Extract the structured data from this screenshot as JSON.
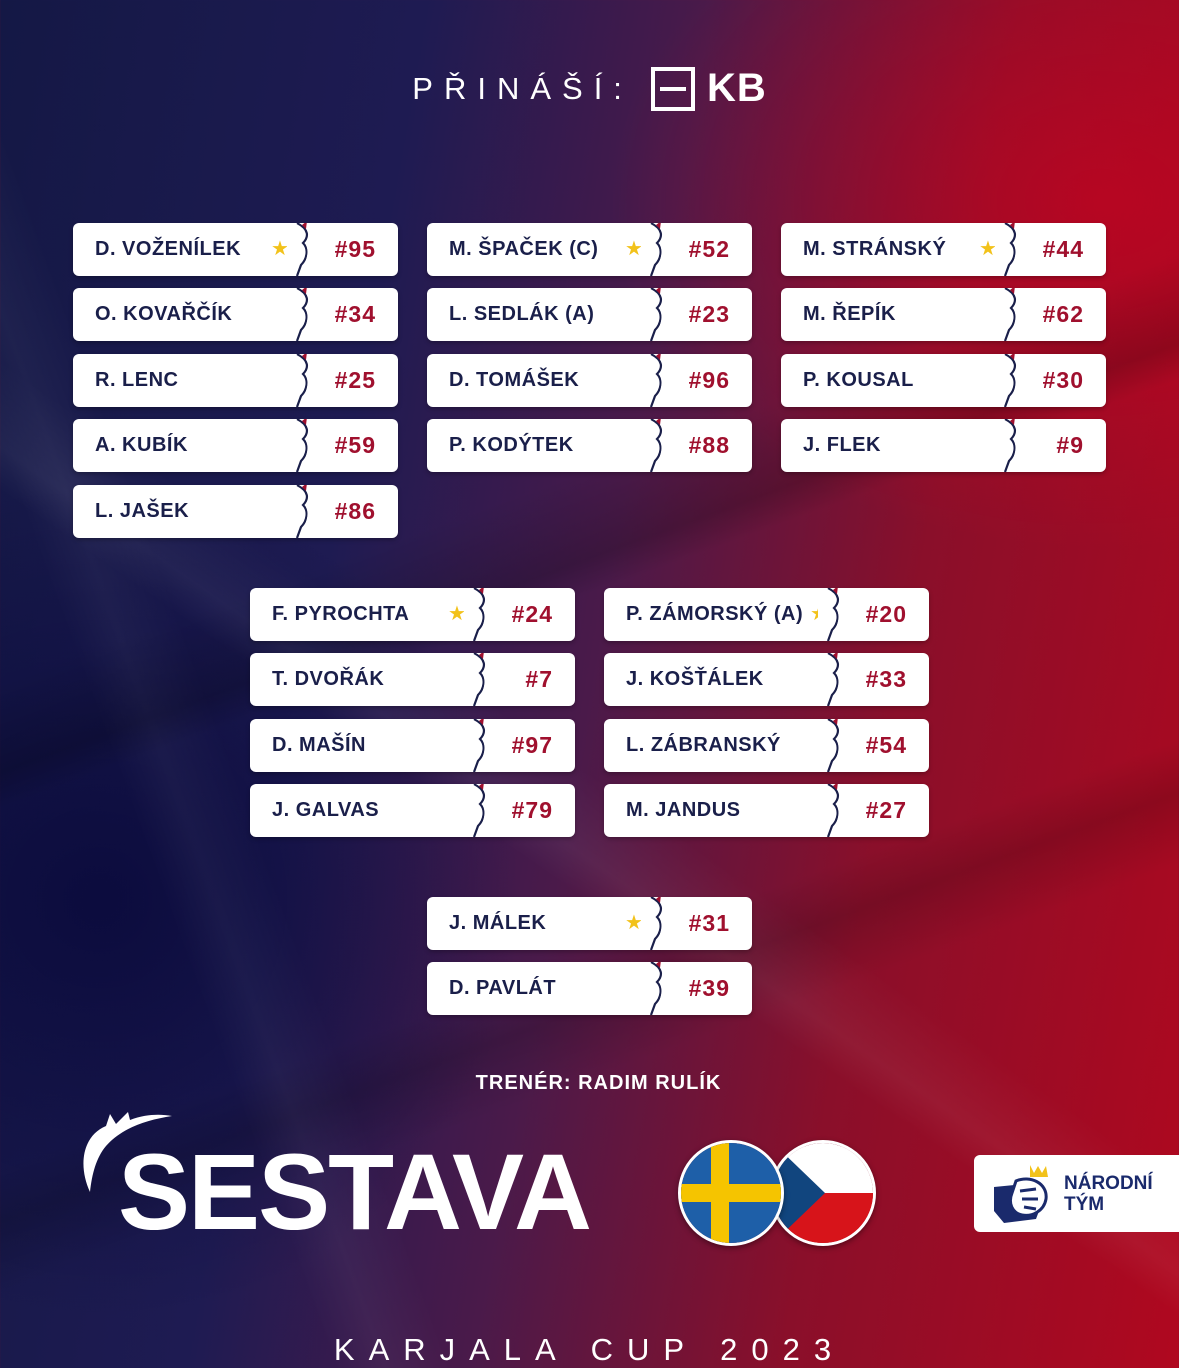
{
  "header": {
    "presents_label": "PŘINÁŠÍ:",
    "sponsor": "KB"
  },
  "players": [
    {
      "name": "D. VOŽENÍLEK",
      "number": "#95",
      "star": true
    },
    {
      "name": "O. KOVAŘČÍK",
      "number": "#34",
      "star": false
    },
    {
      "name": "R. LENC",
      "number": "#25",
      "star": false
    },
    {
      "name": "A. KUBÍK",
      "number": "#59",
      "star": false
    },
    {
      "name": "L. JAŠEK",
      "number": "#86",
      "star": false
    },
    {
      "name": "M. ŠPAČEK (C)",
      "number": "#52",
      "star": true
    },
    {
      "name": "L. SEDLÁK (A)",
      "number": "#23",
      "star": false
    },
    {
      "name": "D. TOMÁŠEK",
      "number": "#96",
      "star": false
    },
    {
      "name": "P. KODÝTEK",
      "number": "#88",
      "star": false
    },
    {
      "name": "M. STRÁNSKÝ",
      "number": "#44",
      "star": true
    },
    {
      "name": "M. ŘEPÍK",
      "number": "#62",
      "star": false
    },
    {
      "name": "P. KOUSAL",
      "number": "#30",
      "star": false
    },
    {
      "name": "J. FLEK",
      "number": "#9",
      "star": false
    },
    {
      "name": "F. PYROCHTA",
      "number": "#24",
      "star": true
    },
    {
      "name": "T. DVOŘÁK",
      "number": "#7",
      "star": false
    },
    {
      "name": "D. MAŠÍN",
      "number": "#97",
      "star": false
    },
    {
      "name": "J. GALVAS",
      "number": "#79",
      "star": false
    },
    {
      "name": "P. ZÁMORSKÝ (A)",
      "number": "#20",
      "star": true
    },
    {
      "name": "J. KOŠŤÁLEK",
      "number": "#33",
      "star": false
    },
    {
      "name": "L. ZÁBRANSKÝ",
      "number": "#54",
      "star": false
    },
    {
      "name": "M. JANDUS",
      "number": "#27",
      "star": false
    },
    {
      "name": "J. MÁLEK",
      "number": "#31",
      "star": true
    },
    {
      "name": "D. PAVLÁT",
      "number": "#39",
      "star": false
    }
  ],
  "coach": "TRENÉR: RADIM RULÍK",
  "title": "SESTAVA",
  "flags": [
    "sweden-flag",
    "czech-flag"
  ],
  "team_badge": {
    "line1": "NÁRODNÍ",
    "line2": "TÝM"
  },
  "footer": "KARJALA CUP 2023",
  "colors": {
    "number": "#a0102e",
    "name": "#1a1f4a",
    "star": "#f2c21a"
  }
}
